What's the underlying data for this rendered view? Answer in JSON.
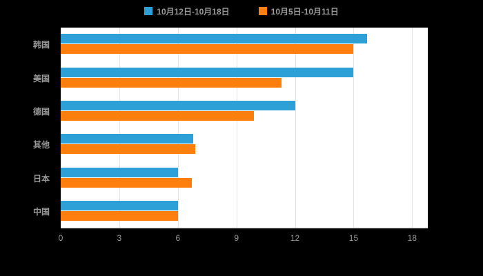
{
  "colors": {
    "page_background": "#000000",
    "plot_background": "#ffffff",
    "gridline": "#e3e3e3",
    "text": "#999999",
    "series_blue": "#2da0d8",
    "series_orange": "#ff7f0e"
  },
  "legend": {
    "items": [
      {
        "label": "10月12日-10月18日",
        "color": "#2da0d8"
      },
      {
        "label": "10月5日-10月11日",
        "color": "#ff7f0e"
      }
    ]
  },
  "chart_data": {
    "type": "bar",
    "orientation": "horizontal",
    "title": "",
    "xlabel": "",
    "ylabel": "",
    "categories": [
      "韩国",
      "美国",
      "德国",
      "其他",
      "日本",
      "中国"
    ],
    "series": [
      {
        "name": "10月12日-10月18日",
        "color": "#2da0d8",
        "values": [
          15.7,
          15.0,
          12.0,
          6.8,
          6.0,
          6.0
        ]
      },
      {
        "name": "10月5日-10月11日",
        "color": "#ff7f0e",
        "values": [
          15.0,
          11.3,
          9.9,
          6.9,
          6.7,
          6.0
        ]
      }
    ],
    "xticks": [
      0,
      3,
      6,
      9,
      12,
      15,
      18
    ],
    "xlim": [
      0,
      18.8
    ],
    "grid": true,
    "legend_position": "top"
  }
}
